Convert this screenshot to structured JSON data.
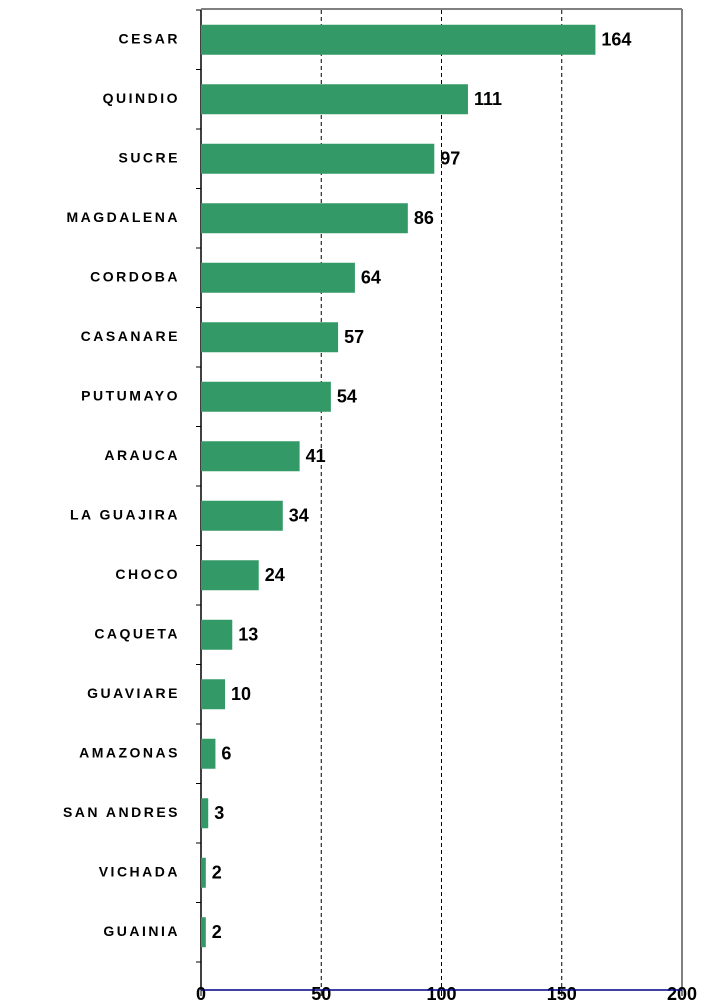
{
  "chart_data": {
    "type": "bar",
    "orientation": "horizontal",
    "categories": [
      "CESAR",
      "QUINDIO",
      "SUCRE",
      "MAGDALENA",
      "CORDOBA",
      "CASANARE",
      "PUTUMAYO",
      "ARAUCA",
      "LA GUAJIRA",
      "CHOCO",
      "CAQUETA",
      "GUAVIARE",
      "AMAZONAS",
      "SAN ANDRES",
      "VICHADA",
      "GUAINIA"
    ],
    "values": [
      164,
      111,
      97,
      86,
      64,
      57,
      54,
      41,
      34,
      24,
      13,
      10,
      6,
      3,
      2,
      2
    ],
    "color": "#339966",
    "xlim": [
      0,
      200
    ],
    "xticks": [
      0,
      50,
      100,
      150,
      200
    ],
    "grid": true
  }
}
